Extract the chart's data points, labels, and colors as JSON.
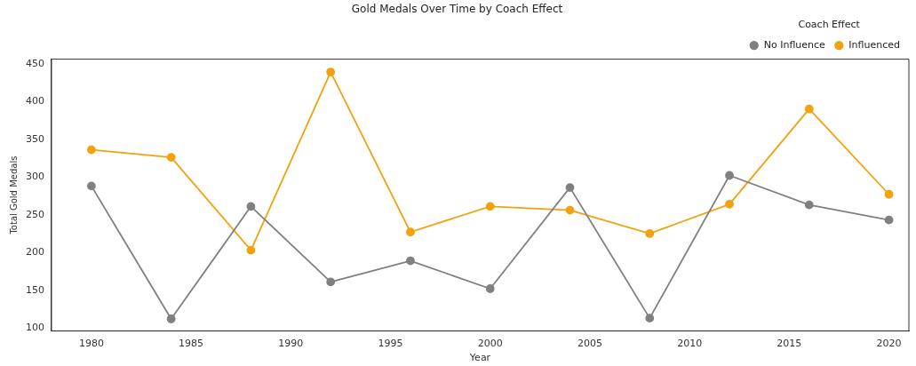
{
  "chart_data": {
    "type": "line",
    "title": "Gold Medals Over Time by Coach Effect",
    "xlabel": "Year",
    "ylabel": "Total Gold Medals",
    "legend_title": "Coach Effect",
    "x": [
      1980,
      1984,
      1988,
      1992,
      1996,
      2000,
      2004,
      2008,
      2012,
      2016,
      2020
    ],
    "series": [
      {
        "name": "No Influence",
        "color": "#808080",
        "values": [
          288,
          112,
          261,
          161,
          189,
          152,
          286,
          113,
          302,
          263,
          243
        ]
      },
      {
        "name": "Influenced",
        "color": "#f2a20c",
        "values": [
          336,
          326,
          203,
          439,
          227,
          261,
          256,
          225,
          264,
          390,
          277
        ]
      }
    ],
    "xlim": [
      1978,
      2021
    ],
    "xticks": [
      1980,
      1985,
      1990,
      1995,
      2000,
      2005,
      2010,
      2015,
      2020
    ],
    "ylim": [
      96,
      456
    ],
    "yticks": [
      100,
      150,
      200,
      250,
      300,
      350,
      400,
      450
    ],
    "legend": "top right",
    "marker": "circle",
    "line_style": "solid",
    "grid": false
  }
}
